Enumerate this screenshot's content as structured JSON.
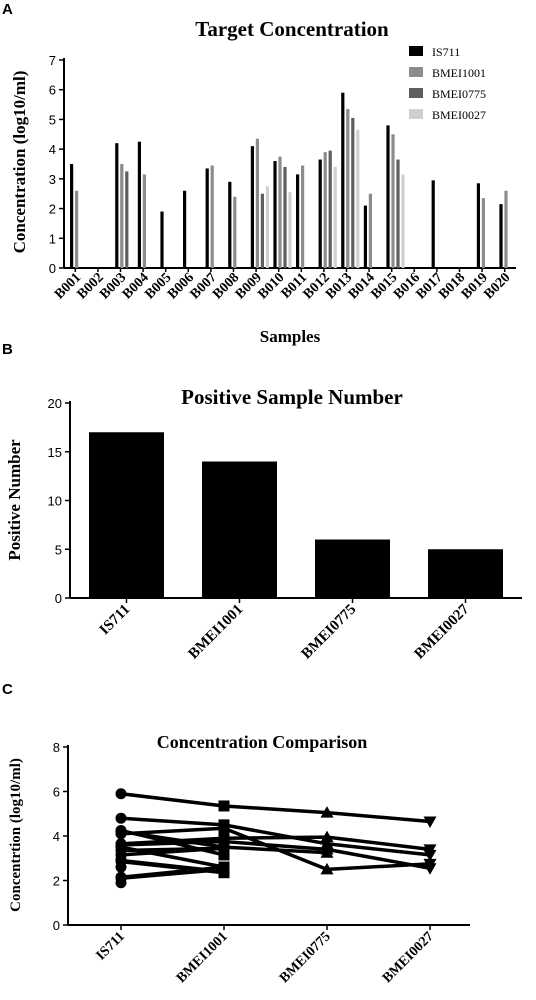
{
  "panels": {
    "a": "A",
    "b": "B",
    "c": "C"
  },
  "chart_data": [
    {
      "type": "bar",
      "title": "Target Concentration",
      "xlabel": "Samples",
      "ylabel": "Concentration (log10/ml)",
      "ylim": [
        0,
        7
      ],
      "yticks": [
        0,
        1,
        2,
        3,
        4,
        5,
        6,
        7
      ],
      "legend_position": "top-right",
      "categories": [
        "B001",
        "B002",
        "B003",
        "B004",
        "B005",
        "B006",
        "B007",
        "B008",
        "B009",
        "B010",
        "B011",
        "B012",
        "B013",
        "B014",
        "B015",
        "B016",
        "B017",
        "B018",
        "B019",
        "B020"
      ],
      "series": [
        {
          "name": "IS711",
          "color": "#000000",
          "values": [
            3.5,
            null,
            4.2,
            4.25,
            1.9,
            2.6,
            3.35,
            2.9,
            4.1,
            3.6,
            3.15,
            3.65,
            5.9,
            2.1,
            4.8,
            null,
            2.95,
            null,
            2.85,
            2.15
          ]
        },
        {
          "name": "BMEI1001",
          "color": "#8c8c8c",
          "values": [
            2.6,
            null,
            3.5,
            3.15,
            null,
            null,
            3.45,
            2.4,
            4.35,
            3.75,
            3.45,
            3.9,
            5.35,
            2.5,
            4.5,
            null,
            null,
            null,
            2.35,
            2.6
          ]
        },
        {
          "name": "BMEI0775",
          "color": "#5e5e5e",
          "values": [
            null,
            null,
            3.25,
            null,
            null,
            null,
            null,
            null,
            2.5,
            3.4,
            null,
            3.95,
            5.05,
            null,
            3.65,
            null,
            null,
            null,
            null,
            null
          ]
        },
        {
          "name": "BMEI0027",
          "color": "#cfcfcf",
          "values": [
            null,
            null,
            null,
            null,
            null,
            null,
            null,
            null,
            2.75,
            2.55,
            null,
            3.4,
            4.65,
            null,
            3.15,
            null,
            null,
            null,
            null,
            null
          ]
        }
      ]
    },
    {
      "type": "bar",
      "title": "Positive  Sample Number",
      "xlabel": "",
      "ylabel": "Positive Number",
      "ylim": [
        0,
        20
      ],
      "yticks": [
        0,
        5,
        10,
        15,
        20
      ],
      "categories": [
        "IS711",
        "BMEI1001",
        "BMEI0775",
        "BMEI0027"
      ],
      "values": [
        17,
        14,
        6,
        5
      ],
      "color": "#000000"
    },
    {
      "type": "line",
      "title": "Concentration Comparison",
      "xlabel": "",
      "ylabel": "Concentrtion (log10/ml)",
      "ylim": [
        0,
        8
      ],
      "yticks": [
        0,
        2,
        4,
        6,
        8
      ],
      "categories": [
        "IS711",
        "BMEI1001",
        "BMEI0775",
        "BMEI0027"
      ],
      "markers": [
        "circle",
        "square",
        "triangle-up",
        "triangle-down"
      ],
      "series": [
        {
          "values": [
            5.9,
            5.35,
            5.05,
            4.65
          ]
        },
        {
          "values": [
            4.8,
            4.5,
            3.65,
            3.15
          ]
        },
        {
          "values": [
            4.1,
            4.35,
            2.5,
            2.75
          ]
        },
        {
          "values": [
            3.6,
            3.75,
            3.4,
            2.55
          ]
        },
        {
          "values": [
            3.65,
            3.9,
            3.95,
            3.4
          ]
        },
        {
          "values": [
            4.2,
            3.5,
            3.25,
            null
          ]
        },
        {
          "values": [
            3.5,
            2.6,
            null,
            null
          ]
        },
        {
          "values": [
            4.25,
            3.15,
            null,
            null
          ]
        },
        {
          "values": [
            3.35,
            3.45,
            null,
            null
          ]
        },
        {
          "values": [
            2.9,
            2.4,
            null,
            null
          ]
        },
        {
          "values": [
            3.15,
            3.45,
            null,
            null
          ]
        },
        {
          "values": [
            2.1,
            2.5,
            null,
            null
          ]
        },
        {
          "values": [
            2.85,
            2.35,
            null,
            null
          ]
        },
        {
          "values": [
            2.15,
            2.6,
            null,
            null
          ]
        }
      ],
      "extra_points": [
        {
          "category": "IS711",
          "value": 1.9
        },
        {
          "category": "IS711",
          "value": 2.6
        },
        {
          "category": "IS711",
          "value": 2.95
        }
      ]
    }
  ]
}
